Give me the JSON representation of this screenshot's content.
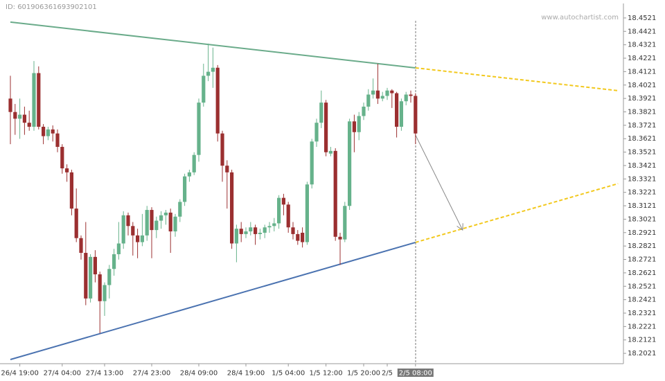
{
  "id_text": "ID: 601906361693902101",
  "watermark": "www.autochartist.com",
  "chart_data": {
    "type": "candlestick",
    "up_color": "#66b28b",
    "down_color": "#9b2f30",
    "categories": [
      null,
      null,
      "26/4 19:00",
      null,
      null,
      null,
      null,
      null,
      null,
      null,
      null,
      "27/4 04:00",
      null,
      null,
      null,
      null,
      null,
      null,
      null,
      null,
      "27/4 13:00",
      null,
      null,
      null,
      null,
      null,
      null,
      null,
      null,
      null,
      "27/4 23:00",
      null,
      null,
      null,
      null,
      null,
      null,
      null,
      null,
      null,
      "28/4 09:00",
      null,
      null,
      null,
      null,
      null,
      null,
      null,
      null,
      null,
      "28/4 19:00",
      null,
      null,
      null,
      null,
      null,
      null,
      null,
      null,
      "1/5 04:00",
      null,
      null,
      null,
      null,
      null,
      null,
      null,
      "1/5 12:00",
      null,
      null,
      null,
      null,
      null,
      null,
      null,
      "1/5 20:00",
      null,
      null,
      null,
      null,
      "2/5",
      null,
      null,
      null,
      null,
      null,
      "2/5 08:00"
    ],
    "open": [
      18.392,
      18.382,
      18.377,
      18.38,
      18.374,
      18.371,
      18.411,
      18.371,
      18.364,
      18.369,
      18.366,
      18.356,
      18.34,
      18.337,
      18.31,
      18.288,
      18.277,
      18.243,
      18.274,
      18.261,
      18.241,
      18.253,
      18.265,
      18.276,
      18.284,
      18.305,
      18.297,
      18.29,
      18.285,
      18.29,
      18.309,
      18.294,
      18.301,
      18.305,
      18.307,
      18.293,
      18.304,
      18.315,
      18.334,
      18.337,
      18.35,
      18.389,
      18.409,
      18.412,
      18.415,
      18.366,
      18.342,
      18.337,
      18.284,
      18.295,
      18.291,
      18.293,
      18.296,
      18.291,
      18.292,
      18.296,
      18.297,
      18.299,
      18.318,
      18.313,
      18.296,
      18.291,
      18.292,
      18.285,
      18.328,
      18.36,
      18.374,
      18.389,
      18.351,
      18.353,
      18.289,
      18.287,
      18.312,
      18.375,
      18.367,
      18.379,
      18.386,
      18.395,
      18.398,
      18.392,
      18.394,
      18.398,
      18.396,
      18.371,
      18.39,
      18.395,
      18.394
    ],
    "high": [
      18.409,
      18.388,
      18.392,
      18.386,
      18.383,
      18.42,
      18.416,
      18.373,
      18.371,
      18.372,
      18.369,
      18.358,
      18.343,
      18.339,
      18.325,
      18.29,
      18.3,
      18.276,
      18.279,
      18.263,
      18.255,
      18.268,
      18.28,
      18.3,
      18.308,
      18.307,
      18.3,
      18.295,
      18.306,
      18.312,
      18.311,
      18.304,
      18.308,
      18.309,
      18.31,
      18.306,
      18.317,
      18.336,
      18.339,
      18.352,
      18.392,
      18.418,
      18.433,
      18.43,
      18.417,
      18.368,
      18.346,
      18.339,
      18.298,
      18.3,
      18.296,
      18.3,
      18.298,
      18.295,
      18.298,
      18.3,
      18.303,
      18.32,
      18.321,
      18.315,
      18.3,
      18.294,
      18.296,
      18.33,
      18.362,
      18.377,
      18.398,
      18.391,
      18.356,
      18.355,
      18.292,
      18.315,
      18.377,
      18.38,
      18.382,
      18.389,
      18.399,
      18.407,
      18.418,
      18.397,
      18.4,
      18.399,
      18.397,
      18.392,
      18.397,
      18.398,
      18.396
    ],
    "low": [
      18.358,
      18.365,
      18.362,
      18.365,
      18.368,
      18.368,
      18.369,
      18.358,
      18.361,
      18.36,
      18.352,
      18.336,
      18.33,
      18.305,
      18.285,
      18.272,
      18.238,
      18.24,
      18.255,
      18.217,
      18.23,
      18.243,
      18.26,
      18.272,
      18.28,
      18.29,
      18.275,
      18.273,
      18.282,
      18.286,
      18.273,
      18.288,
      18.295,
      18.298,
      18.277,
      18.289,
      18.3,
      18.312,
      18.33,
      18.335,
      18.345,
      18.386,
      18.405,
      18.4,
      18.36,
      18.33,
      18.31,
      18.28,
      18.27,
      18.285,
      18.288,
      18.29,
      18.283,
      18.287,
      18.288,
      18.292,
      18.293,
      18.295,
      18.305,
      18.292,
      18.287,
      18.283,
      18.281,
      18.283,
      18.325,
      18.356,
      18.37,
      18.349,
      18.349,
      18.286,
      18.268,
      18.285,
      18.309,
      18.352,
      18.361,
      18.376,
      18.383,
      18.392,
      18.388,
      18.39,
      18.391,
      18.385,
      18.363,
      18.368,
      18.387,
      18.389,
      18.358
    ],
    "close": [
      18.382,
      18.377,
      18.38,
      18.374,
      18.371,
      18.411,
      18.371,
      18.364,
      18.369,
      18.366,
      18.356,
      18.34,
      18.337,
      18.31,
      18.288,
      18.277,
      18.243,
      18.274,
      18.261,
      18.241,
      18.253,
      18.265,
      18.276,
      18.284,
      18.305,
      18.297,
      18.29,
      18.285,
      18.29,
      18.309,
      18.294,
      18.301,
      18.305,
      18.307,
      18.293,
      18.304,
      18.315,
      18.334,
      18.337,
      18.35,
      18.389,
      18.409,
      18.412,
      18.415,
      18.366,
      18.342,
      18.337,
      18.284,
      18.295,
      18.291,
      18.293,
      18.296,
      18.291,
      18.292,
      18.296,
      18.297,
      18.299,
      18.318,
      18.313,
      18.296,
      18.291,
      18.286,
      18.285,
      18.328,
      18.36,
      18.374,
      18.389,
      18.352,
      18.353,
      18.289,
      18.287,
      18.312,
      18.375,
      18.367,
      18.379,
      18.386,
      18.395,
      18.398,
      18.392,
      18.394,
      18.398,
      18.396,
      18.371,
      18.39,
      18.395,
      18.394,
      18.366
    ],
    "ylim": [
      18.1944,
      18.4629
    ],
    "yticks": [
      18.2021,
      18.2121,
      18.2221,
      18.2321,
      18.2421,
      18.2521,
      18.2621,
      18.2721,
      18.2821,
      18.2921,
      18.3021,
      18.3121,
      18.3221,
      18.3321,
      18.3421,
      18.3521,
      18.3621,
      18.3721,
      18.3821,
      18.3921,
      18.4021,
      18.4121,
      18.4221,
      18.4321,
      18.4421,
      18.4521
    ],
    "lines": [
      {
        "color": "#6aab8a",
        "style": "solid",
        "x": [
          0,
          86
        ],
        "y": [
          18.449,
          18.4149
        ]
      },
      {
        "color": "#f2c81c",
        "style": "dashed",
        "x": [
          86,
          129
        ],
        "y": [
          18.4149,
          18.3979
        ]
      },
      {
        "color": "#4a72b0",
        "style": "solid",
        "x": [
          0,
          86
        ],
        "y": [
          18.1975,
          18.2848
        ]
      },
      {
        "color": "#f2c81c",
        "style": "dashed",
        "x": [
          86,
          129
        ],
        "y": [
          18.2848,
          18.3286
        ]
      },
      {
        "color": "#888888",
        "style": "arrow",
        "x": [
          86,
          96
        ],
        "y": [
          18.3648,
          18.294
        ]
      }
    ]
  }
}
